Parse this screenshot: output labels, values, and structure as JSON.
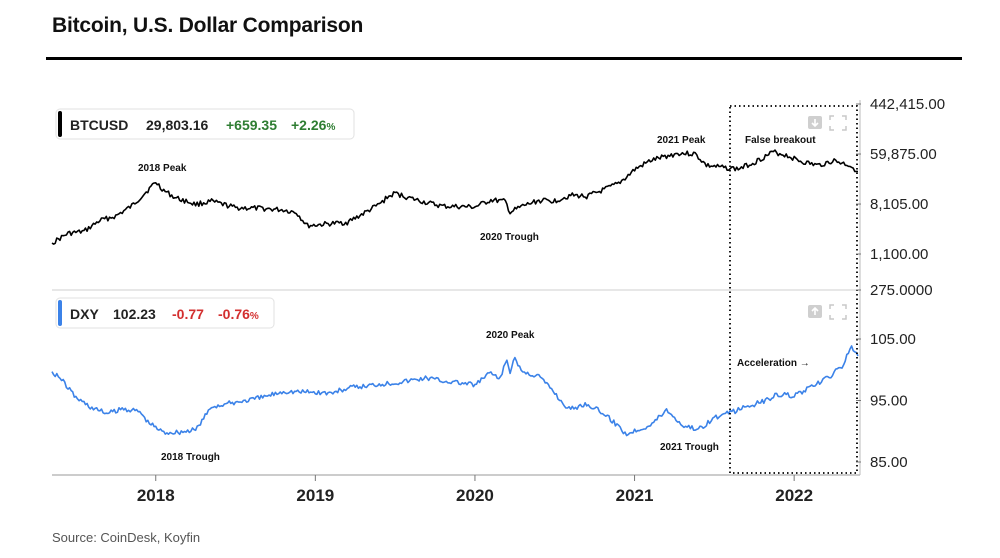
{
  "header": {
    "title": "Bitcoin, U.S. Dollar Comparison"
  },
  "footer": {
    "source": "Source: CoinDesk, Koyfin"
  },
  "chart_data": [
    {
      "type": "line",
      "series": [
        {
          "name": "BTCUSD",
          "color": "#000000",
          "last": "29,803.16",
          "change": "+659.35",
          "change_pct": "+2.26",
          "pct_unit": "%",
          "x": [
            2017.35,
            2017.45,
            2017.55,
            2017.65,
            2017.75,
            2017.85,
            2017.95,
            2018.0,
            2018.05,
            2018.12,
            2018.25,
            2018.35,
            2018.5,
            2018.65,
            2018.8,
            2018.88,
            2018.95,
            2019.05,
            2019.2,
            2019.3,
            2019.4,
            2019.45,
            2019.5,
            2019.58,
            2019.7,
            2019.8,
            2019.9,
            2020.0,
            2020.1,
            2020.19,
            2020.22,
            2020.3,
            2020.4,
            2020.5,
            2020.6,
            2020.7,
            2020.8,
            2020.9,
            2020.95,
            2021.0,
            2021.1,
            2021.2,
            2021.28,
            2021.38,
            2021.45,
            2021.55,
            2021.65,
            2021.75,
            2021.87,
            2021.95,
            2022.05,
            2022.15,
            2022.25,
            2022.35,
            2022.4
          ],
          "y": [
            1700,
            2500,
            2700,
            4200,
            5000,
            7500,
            14000,
            19500,
            14000,
            10500,
            8000,
            9000,
            7000,
            6800,
            6400,
            5800,
            3400,
            3600,
            3900,
            5500,
            8000,
            10500,
            12500,
            10500,
            8500,
            7400,
            7300,
            7200,
            9500,
            9000,
            5800,
            7500,
            9300,
            9200,
            11500,
            11000,
            14000,
            18500,
            24000,
            32000,
            46000,
            55000,
            62000,
            60000,
            38000,
            35000,
            33000,
            43000,
            65000,
            57000,
            44000,
            38000,
            46000,
            38000,
            29803
          ]
        },
        {
          "name": "DXY",
          "color": "#3b82e8",
          "last": "102.23",
          "change": "-0.77",
          "change_pct": "-0.76",
          "pct_unit": "%",
          "x": [
            2017.35,
            2017.4,
            2017.5,
            2017.6,
            2017.7,
            2017.8,
            2017.9,
            2017.95,
            2018.05,
            2018.15,
            2018.25,
            2018.35,
            2018.5,
            2018.65,
            2018.8,
            2018.95,
            2019.1,
            2019.2,
            2019.3,
            2019.4,
            2019.5,
            2019.6,
            2019.7,
            2019.8,
            2019.9,
            2020.0,
            2020.1,
            2020.15,
            2020.2,
            2020.22,
            2020.25,
            2020.3,
            2020.4,
            2020.5,
            2020.55,
            2020.6,
            2020.7,
            2020.8,
            2020.9,
            2020.95,
            2021.0,
            2021.1,
            2021.2,
            2021.3,
            2021.4,
            2021.5,
            2021.6,
            2021.7,
            2021.8,
            2021.9,
            2022.0,
            2022.1,
            2022.2,
            2022.3,
            2022.36,
            2022.4
          ],
          "y": [
            99.7,
            98.7,
            95.5,
            93.8,
            92.9,
            93.7,
            93.2,
            91.5,
            89.8,
            89.9,
            90.2,
            94.0,
            94.7,
            95.4,
            96.5,
            96.4,
            96.2,
            97.0,
            97.3,
            97.7,
            97.9,
            98.3,
            98.7,
            98.2,
            97.9,
            97.5,
            99.6,
            98.3,
            101.5,
            99.6,
            101.8,
            99.6,
            99.0,
            96.3,
            94.5,
            93.6,
            94.5,
            93.0,
            90.8,
            89.5,
            90.1,
            91.0,
            93.5,
            91.0,
            90.3,
            92.2,
            93.0,
            94.0,
            94.8,
            96.0,
            95.8,
            97.0,
            98.5,
            100.5,
            103.8,
            102.23
          ]
        }
      ],
      "y_axis_btc": {
        "scale": "log",
        "ticks": [
          "442,415.00",
          "59,875.00",
          "8,105.00",
          "1,100.00"
        ],
        "tick_values": [
          442415,
          59875,
          8105,
          1100
        ]
      },
      "y_axis_dxy": {
        "ticks": [
          "275.0000",
          "105.00",
          "95.00",
          "85.00"
        ],
        "tick_values": [
          275,
          105,
          95,
          85
        ]
      },
      "x_ticks": [
        "2018",
        "2019",
        "2020",
        "2021",
        "2022"
      ],
      "x_tick_values": [
        2018,
        2019,
        2020,
        2021,
        2022
      ],
      "annotations": {
        "btc_2018_peak": "2018 Peak",
        "btc_2020_trough": "2020 Trough",
        "btc_2021_peak": "2021 Peak",
        "false_breakout": "False breakout",
        "dxy_2018_trough": "2018 Trough",
        "dxy_2020_peak": "2020 Peak",
        "dxy_2021_trough": "2021 Trough",
        "acceleration": "Acceleration →"
      },
      "grid": false
    }
  ]
}
